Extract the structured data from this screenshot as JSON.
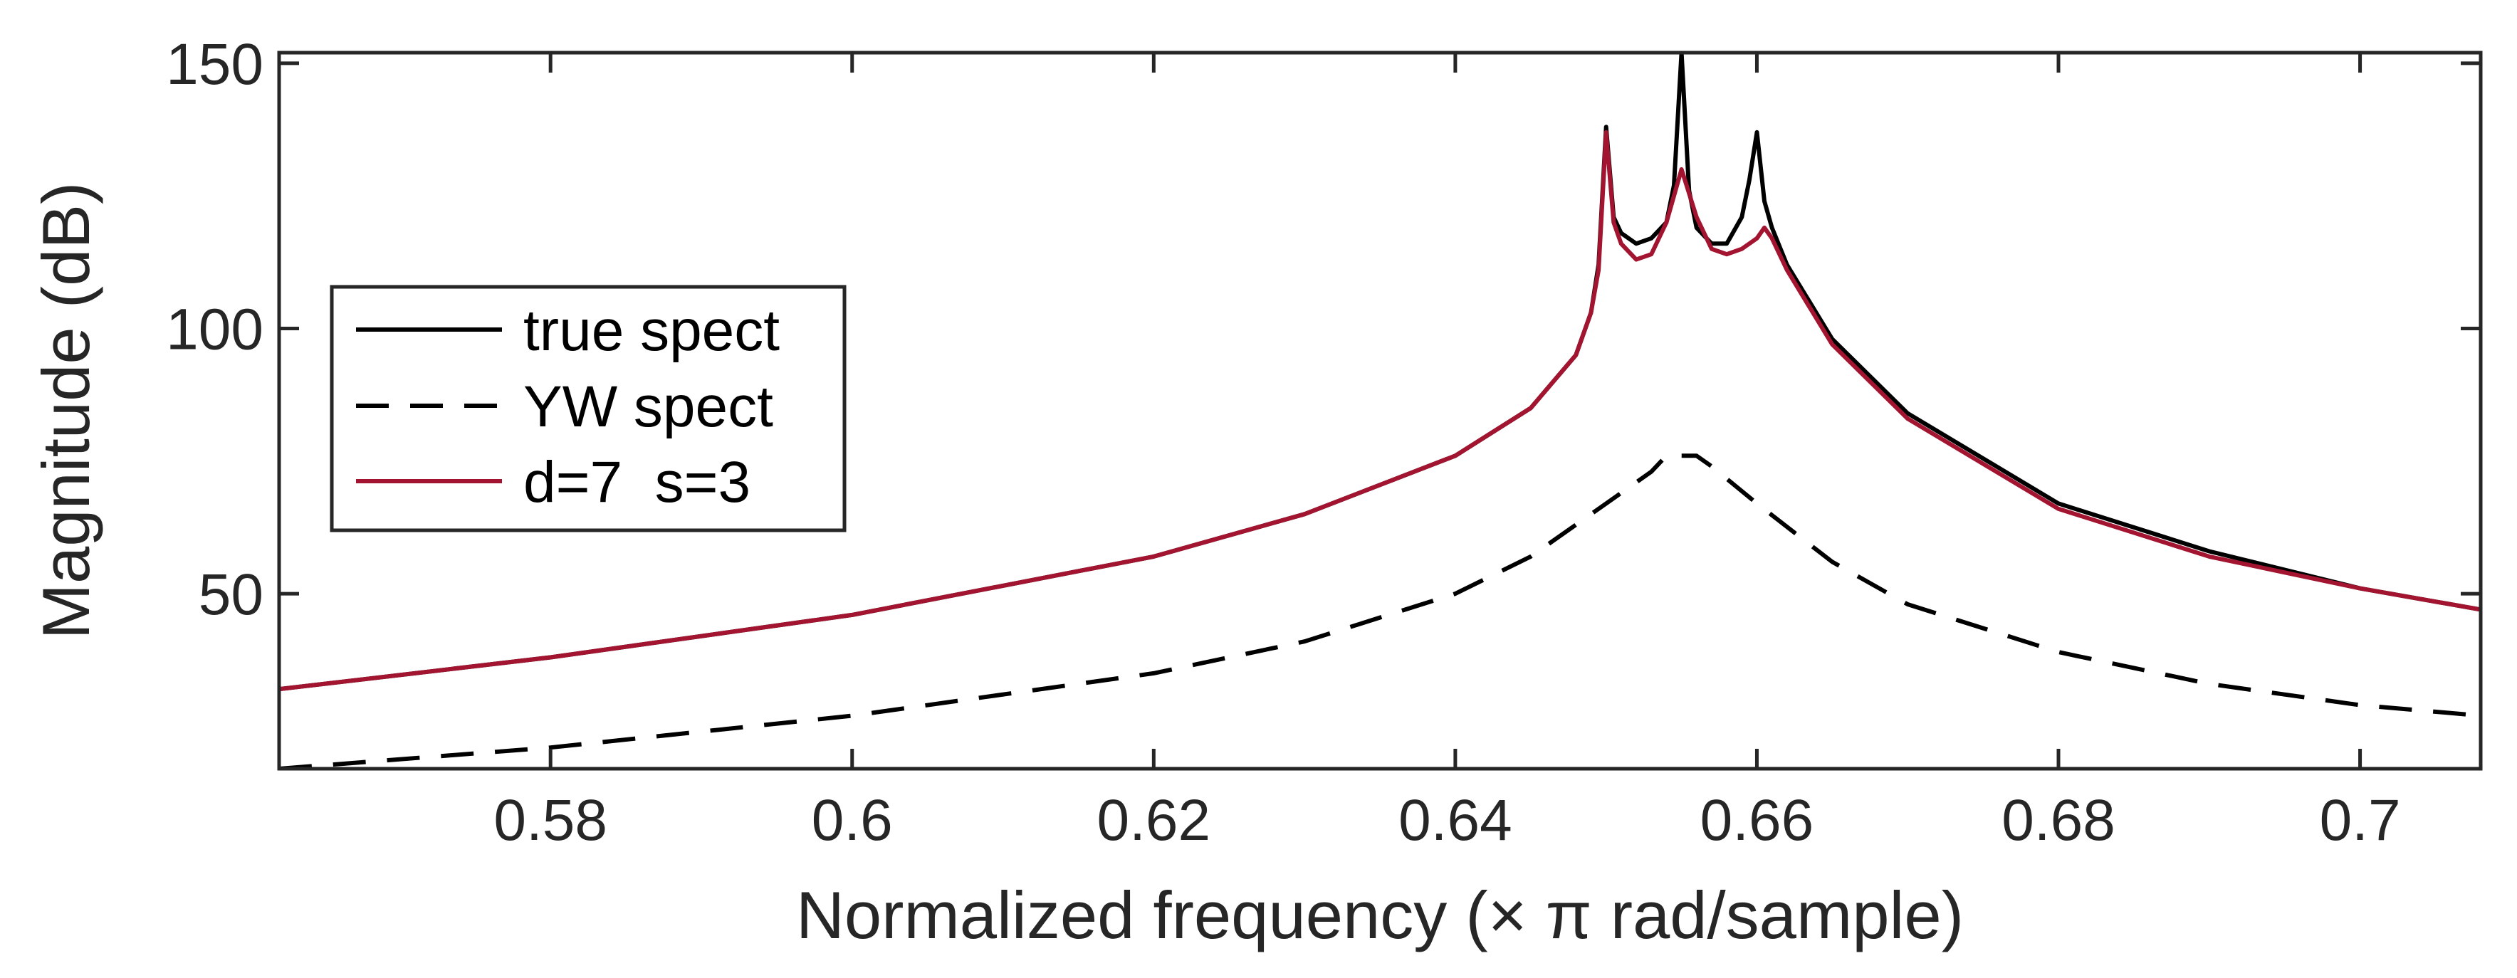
{
  "chart_data": {
    "type": "line",
    "xlabel": "Normalized frequency (× π rad/sample)",
    "ylabel": "Magnitude (dB)",
    "xlim": [
      0.562,
      0.708
    ],
    "ylim": [
      17,
      152
    ],
    "xticks": [
      0.58,
      0.6,
      0.62,
      0.64,
      0.66,
      0.68,
      0.7
    ],
    "xtick_labels": [
      "0.58",
      "0.6",
      "0.62",
      "0.64",
      "0.66",
      "0.68",
      "0.7"
    ],
    "yticks": [
      50,
      100,
      150
    ],
    "ytick_labels": [
      "50",
      "100",
      "150"
    ],
    "grid": false,
    "legend_position": "left",
    "series": [
      {
        "name": "true spect",
        "style": "solid",
        "color": "#000000",
        "x": [
          0.562,
          0.58,
          0.6,
          0.62,
          0.63,
          0.64,
          0.645,
          0.648,
          0.649,
          0.6495,
          0.65,
          0.6505,
          0.651,
          0.652,
          0.653,
          0.654,
          0.6545,
          0.655,
          0.6555,
          0.656,
          0.657,
          0.658,
          0.659,
          0.6595,
          0.66,
          0.6605,
          0.661,
          0.662,
          0.665,
          0.67,
          0.68,
          0.69,
          0.7,
          0.708
        ],
        "y": [
          32,
          38,
          46,
          57,
          65,
          76,
          85,
          95,
          103,
          112,
          138,
          121,
          118,
          116,
          117,
          120,
          127,
          152,
          126,
          119,
          116,
          116,
          121,
          128,
          137,
          124,
          119,
          112,
          98,
          84,
          67,
          58,
          51,
          47
        ]
      },
      {
        "name": "YW spect",
        "style": "dashed",
        "color": "#000000",
        "x": [
          0.562,
          0.58,
          0.6,
          0.62,
          0.63,
          0.64,
          0.645,
          0.65,
          0.653,
          0.654,
          0.655,
          0.656,
          0.657,
          0.66,
          0.665,
          0.67,
          0.68,
          0.69,
          0.7,
          0.708
        ],
        "y": [
          17,
          21,
          27,
          35,
          41,
          50,
          57,
          67,
          73,
          76,
          76,
          76,
          74,
          67,
          56,
          48,
          39,
          33,
          29,
          27
        ]
      },
      {
        "name": "d=7  s=3",
        "style": "solid",
        "color": "#a2142f",
        "x": [
          0.562,
          0.58,
          0.6,
          0.62,
          0.63,
          0.64,
          0.645,
          0.648,
          0.649,
          0.6495,
          0.65,
          0.6505,
          0.651,
          0.652,
          0.653,
          0.654,
          0.655,
          0.656,
          0.657,
          0.658,
          0.659,
          0.66,
          0.6605,
          0.661,
          0.662,
          0.665,
          0.67,
          0.68,
          0.69,
          0.7,
          0.708
        ],
        "y": [
          32,
          38,
          46,
          57,
          65,
          76,
          85,
          95,
          103,
          111,
          137,
          120,
          116,
          113,
          114,
          120,
          130,
          121,
          115,
          114,
          115,
          117,
          119,
          117,
          111,
          97,
          83,
          66,
          57,
          51,
          47
        ]
      }
    ]
  }
}
